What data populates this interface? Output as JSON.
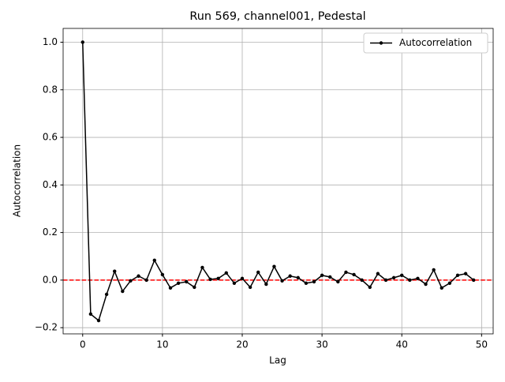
{
  "chart_data": {
    "type": "line",
    "title": "Run 569, channel001, Pedestal",
    "xlabel": "Lag",
    "ylabel": "Autocorrelation",
    "x": [
      0,
      1,
      2,
      3,
      4,
      5,
      6,
      7,
      8,
      9,
      10,
      11,
      12,
      13,
      14,
      15,
      16,
      17,
      18,
      19,
      20,
      21,
      22,
      23,
      24,
      25,
      26,
      27,
      28,
      29,
      30,
      31,
      32,
      33,
      34,
      35,
      36,
      37,
      38,
      39,
      40,
      41,
      42,
      43,
      44,
      45,
      46,
      47,
      48,
      49
    ],
    "series": [
      {
        "name": "Autocorrelation",
        "color": "#000000",
        "values": [
          1.0,
          -0.143,
          -0.17,
          -0.06,
          0.037,
          -0.047,
          -0.003,
          0.017,
          0.0,
          0.083,
          0.023,
          -0.033,
          -0.013,
          -0.007,
          -0.03,
          0.053,
          0.003,
          0.007,
          0.03,
          -0.013,
          0.007,
          -0.03,
          0.033,
          -0.017,
          0.057,
          -0.003,
          0.017,
          0.01,
          -0.013,
          -0.007,
          0.02,
          0.013,
          -0.007,
          0.033,
          0.023,
          0.0,
          -0.03,
          0.027,
          0.0,
          0.01,
          0.02,
          0.0,
          0.007,
          -0.017,
          0.043,
          -0.033,
          -0.013,
          0.02,
          0.027,
          0.0
        ]
      }
    ],
    "reference_line": {
      "value": 0,
      "color": "#ff0000"
    },
    "xlim": [
      -2.45,
      51.45
    ],
    "xticks": [
      0,
      10,
      20,
      30,
      40,
      50
    ],
    "ylim": [
      -0.226,
      1.058
    ],
    "yticks": [
      {
        "value": -0.2,
        "label": "−0.2"
      },
      {
        "value": 0,
        "label": "0.0"
      },
      {
        "value": 0.2,
        "label": "0.2"
      },
      {
        "value": 0.4,
        "label": "0.4"
      },
      {
        "value": 0.6,
        "label": "0.6"
      },
      {
        "value": 0.8,
        "label": "0.8"
      },
      {
        "value": 1.0,
        "label": "1.0"
      }
    ],
    "grid": true,
    "legend": "upper right"
  }
}
